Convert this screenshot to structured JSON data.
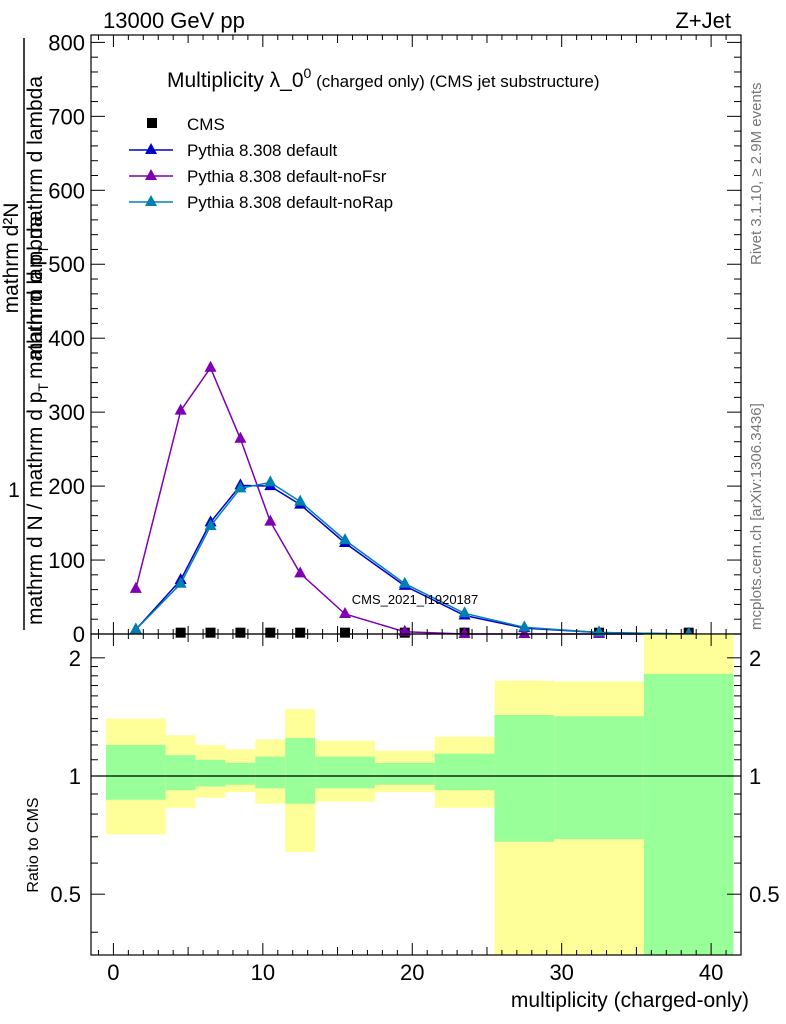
{
  "header": {
    "left": "13000 GeV pp",
    "right": "Z+Jet"
  },
  "side_notes": {
    "rivet": "Rivet 3.1.10, ≥ 2.9M events",
    "mcplots": "mcplots.cern.ch [arXiv:1306.3436]"
  },
  "watermark": "CMS_2021_I1920187",
  "colors": {
    "cms": "#000000",
    "default": "#0000cc",
    "noFsr": "#7f00b2",
    "noRap": "#0080b2",
    "band_inner": "#99ff99",
    "band_outer": "#ffff99"
  },
  "chart_data": [
    {
      "type": "line",
      "title_main": "Multiplicity λ_0",
      "title_sup": "0",
      "title_rest": " (charged only) (CMS jet substructure)",
      "ylabel_numerator": "1",
      "ylabel_main": "mathrm d N / mathrm d p",
      "ylabel_sub": "T",
      "ylabel_main2": "mathrm d lambda",
      "ylabel_alt": "mathrm d²N",
      "ylabel_alt2": "mathrm d p",
      "ylabel_alt_sub": "T",
      "ylabel_alt3": " mathrm d lambda",
      "xlim": [
        -1.5,
        42
      ],
      "ylim": [
        0,
        810
      ],
      "yticks": [
        0,
        100,
        200,
        300,
        400,
        500,
        600,
        700,
        800
      ],
      "legend_position": "top-left",
      "series": [
        {
          "name": "CMS",
          "marker": "square",
          "x": [
            4.5,
            6.5,
            8.5,
            10.5,
            12.5,
            15.5,
            19.5,
            23.5,
            32.5,
            38.5
          ],
          "y": [
            1.8,
            1.8,
            1.8,
            1.8,
            1.8,
            1.8,
            1.8,
            1.8,
            1.8,
            1.8
          ]
        },
        {
          "name": "Pythia 8.308 default",
          "marker": "triangle",
          "x": [
            1.5,
            4.5,
            6.5,
            8.5,
            10.5,
            12.5,
            15.5,
            19.5,
            23.5,
            27.5,
            32.5,
            38.5
          ],
          "y": [
            6,
            73,
            151,
            201,
            200,
            175,
            123,
            65,
            25,
            8,
            2,
            0
          ]
        },
        {
          "name": "Pythia 8.308 default-noFsr",
          "marker": "triangle",
          "x": [
            1.5,
            4.5,
            6.5,
            8.5,
            10.5,
            12.5,
            15.5,
            19.5,
            23.5,
            27.5,
            32.5,
            38.5
          ],
          "y": [
            61,
            302,
            360,
            264,
            152,
            82,
            27,
            3,
            0,
            0,
            0,
            0
          ]
        },
        {
          "name": "Pythia 8.308 default-noRap",
          "marker": "triangle",
          "x": [
            1.5,
            4.5,
            6.5,
            8.5,
            10.5,
            12.5,
            15.5,
            19.5,
            23.5,
            27.5,
            32.5,
            38.5
          ],
          "y": [
            6,
            68,
            146,
            197,
            205,
            179,
            127,
            68,
            28,
            9,
            2,
            0
          ]
        }
      ]
    },
    {
      "type": "area",
      "ylabel": "Ratio to CMS",
      "xlabel": "multiplicity (charged-only)",
      "xlim": [
        -1.5,
        42
      ],
      "ylim": [
        0.35,
        2.3
      ],
      "xticks": [
        0,
        10,
        20,
        30,
        40
      ],
      "yticks": [
        0.5,
        1,
        2
      ],
      "reference": 1,
      "bands": [
        {
          "x0": -0.5,
          "x1": 3.5,
          "inner": [
            0.87,
            1.2
          ],
          "outer": [
            0.71,
            1.4
          ]
        },
        {
          "x0": 3.5,
          "x1": 5.5,
          "inner": [
            0.92,
            1.13
          ],
          "outer": [
            0.83,
            1.27
          ]
        },
        {
          "x0": 5.5,
          "x1": 7.5,
          "inner": [
            0.94,
            1.1
          ],
          "outer": [
            0.88,
            1.2
          ]
        },
        {
          "x0": 7.5,
          "x1": 9.5,
          "inner": [
            0.95,
            1.08
          ],
          "outer": [
            0.91,
            1.17
          ]
        },
        {
          "x0": 9.5,
          "x1": 11.5,
          "inner": [
            0.93,
            1.12
          ],
          "outer": [
            0.85,
            1.24
          ]
        },
        {
          "x0": 11.5,
          "x1": 13.5,
          "inner": [
            0.85,
            1.25
          ],
          "outer": [
            0.64,
            1.48
          ]
        },
        {
          "x0": 13.5,
          "x1": 17.5,
          "inner": [
            0.93,
            1.12
          ],
          "outer": [
            0.86,
            1.23
          ]
        },
        {
          "x0": 17.5,
          "x1": 21.5,
          "inner": [
            0.95,
            1.08
          ],
          "outer": [
            0.91,
            1.16
          ]
        },
        {
          "x0": 21.5,
          "x1": 25.5,
          "inner": [
            0.92,
            1.14
          ],
          "outer": [
            0.83,
            1.26
          ]
        },
        {
          "x0": 25.5,
          "x1": 29.5,
          "inner": [
            0.68,
            1.43
          ],
          "outer": [
            0.3,
            1.75
          ]
        },
        {
          "x0": 29.5,
          "x1": 35.5,
          "inner": [
            0.69,
            1.42
          ],
          "outer": [
            0.3,
            1.74
          ]
        },
        {
          "x0": 35.5,
          "x1": 41.5,
          "inner": [
            0.3,
            1.82
          ],
          "outer": [
            0.3,
            2.4
          ]
        }
      ]
    }
  ]
}
